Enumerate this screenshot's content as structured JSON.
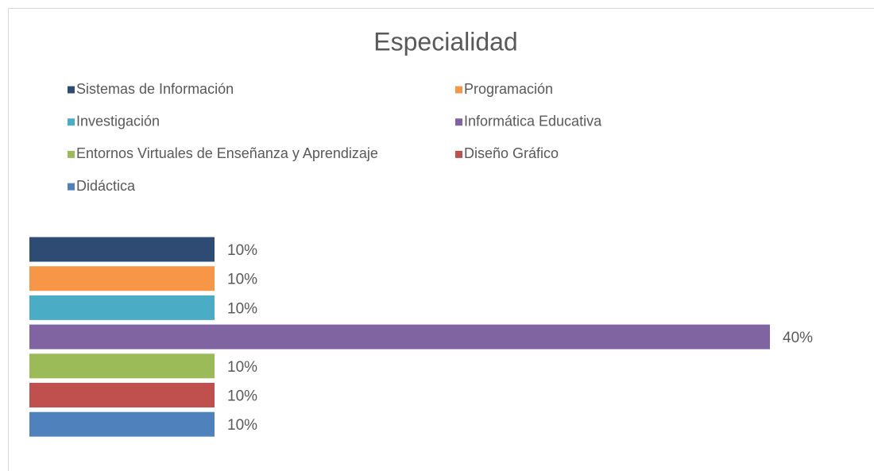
{
  "chart_data": {
    "type": "bar",
    "orientation": "horizontal",
    "title": "Especialidad",
    "legend": "top",
    "series": [
      {
        "name": "Sistemas de Información",
        "color": "#2e4c73",
        "values": [
          10
        ],
        "value_labels": [
          "10%"
        ]
      },
      {
        "name": "Programación",
        "color": "#f79646",
        "values": [
          10
        ],
        "value_labels": [
          "10%"
        ]
      },
      {
        "name": "Investigación",
        "color": "#4bacc6",
        "values": [
          10
        ],
        "value_labels": [
          "10%"
        ]
      },
      {
        "name": "Informática Educativa",
        "color": "#8064a2",
        "values": [
          40
        ],
        "value_labels": [
          "40%"
        ]
      },
      {
        "name": "Entornos Virtuales de Enseñanza y Aprendizaje",
        "color": "#9bbb59",
        "values": [
          10
        ],
        "value_labels": [
          "10%"
        ]
      },
      {
        "name": "Diseño Gráfico",
        "color": "#c0504d",
        "values": [
          10
        ],
        "value_labels": [
          "10%"
        ]
      },
      {
        "name": "Didáctica",
        "color": "#4f81bd",
        "values": [
          10
        ],
        "value_labels": [
          "10%"
        ]
      }
    ]
  }
}
